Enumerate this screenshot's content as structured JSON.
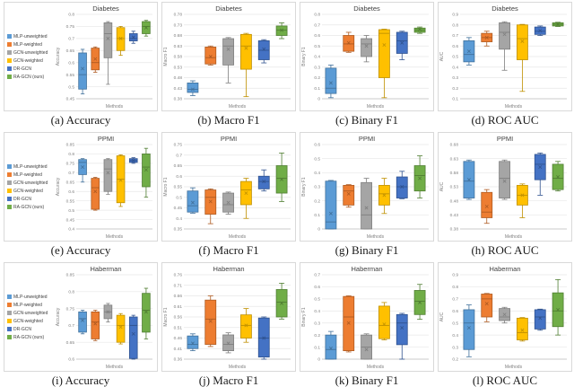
{
  "legend": {
    "items": [
      {
        "key": "mlp-unweighted",
        "label": "MLP-unweighted",
        "color": "#5B9BD5",
        "stroke": "#41719C"
      },
      {
        "key": "mlp-weighted",
        "label": "MLP-weighted",
        "color": "#ED7D31",
        "stroke": "#AE5A21"
      },
      {
        "key": "gcn-unweighted",
        "label": "GCN-unweighted",
        "color": "#A5A5A5",
        "stroke": "#7F7F7F"
      },
      {
        "key": "gcn-weighted",
        "label": "GCN-weighted",
        "color": "#FFC000",
        "stroke": "#BF9000"
      },
      {
        "key": "dr-gcn",
        "label": "DR-GCN",
        "color": "#4472C4",
        "stroke": "#2F528F"
      },
      {
        "key": "ra-gcn-ours",
        "label": "RA-GCN (ours)",
        "color": "#70AD47",
        "stroke": "#507E32"
      }
    ]
  },
  "captions": [
    "(a) Accuracy",
    "(b) Macro F1",
    "(c) Binary F1",
    "(d) ROC AUC",
    "(e) Accuracy",
    "(f) Macro F1",
    "(g) Binary F1",
    "(h) ROC AUC",
    "(i) Accuracy",
    "(j) Macro F1",
    "(k) Binary F1",
    "(l) ROC AUC"
  ],
  "chart_data": [
    {
      "type": "box",
      "title": "Diabetes",
      "ylabel": "Accuracy",
      "xlabel": "Methods",
      "ymin": 0.45,
      "ymax": 0.8,
      "ystep": 0.05,
      "series": [
        {
          "method": "MLP-unweighted",
          "low": 0.47,
          "q1": 0.49,
          "median": 0.55,
          "q3": 0.64,
          "high": 0.655,
          "mean": 0.575
        },
        {
          "method": "MLP-weighted",
          "low": 0.56,
          "q1": 0.57,
          "median": 0.6,
          "q3": 0.66,
          "high": 0.665,
          "mean": 0.615
        },
        {
          "method": "GCN-unweighted",
          "low": 0.51,
          "q1": 0.62,
          "median": 0.72,
          "q3": 0.765,
          "high": 0.77,
          "mean": 0.7
        },
        {
          "method": "GCN-weighted",
          "low": 0.63,
          "q1": 0.65,
          "median": 0.7,
          "q3": 0.745,
          "high": 0.75,
          "mean": 0.7
        },
        {
          "method": "DR-GCN",
          "low": 0.68,
          "q1": 0.69,
          "median": 0.7,
          "q3": 0.72,
          "high": 0.73,
          "mean": 0.705
        },
        {
          "method": "RA-GCN (ours)",
          "low": 0.71,
          "q1": 0.72,
          "median": 0.75,
          "q3": 0.77,
          "high": 0.775,
          "mean": 0.745
        }
      ]
    },
    {
      "type": "box",
      "title": "Diabetes",
      "ylabel": "Macro F1",
      "xlabel": "Methods",
      "ymin": 0.38,
      "ymax": 0.78,
      "ystep": 0.05,
      "series": [
        {
          "method": "MLP-unweighted",
          "low": 0.395,
          "q1": 0.41,
          "median": 0.425,
          "q3": 0.455,
          "high": 0.465,
          "mean": 0.425
        },
        {
          "method": "MLP-weighted",
          "low": 0.54,
          "q1": 0.545,
          "median": 0.575,
          "q3": 0.625,
          "high": 0.63,
          "mean": 0.58
        },
        {
          "method": "GCN-unweighted",
          "low": 0.455,
          "q1": 0.54,
          "median": 0.63,
          "q3": 0.665,
          "high": 0.67,
          "mean": 0.615
        },
        {
          "method": "GCN-weighted",
          "low": 0.39,
          "q1": 0.52,
          "median": 0.63,
          "q3": 0.685,
          "high": 0.69,
          "mean": 0.62
        },
        {
          "method": "DR-GCN",
          "low": 0.55,
          "q1": 0.565,
          "median": 0.61,
          "q3": 0.655,
          "high": 0.66,
          "mean": 0.615
        },
        {
          "method": "RA-GCN (ours)",
          "low": 0.665,
          "q1": 0.68,
          "median": 0.705,
          "q3": 0.725,
          "high": 0.74,
          "mean": 0.705
        }
      ]
    },
    {
      "type": "box",
      "title": "Diabetes",
      "ylabel": "Binary F1",
      "xlabel": "Methods",
      "ymin": 0,
      "ymax": 0.8,
      "ystep": 0.1,
      "series": [
        {
          "method": "MLP-unweighted",
          "low": 0.01,
          "q1": 0.05,
          "median": 0.1,
          "q3": 0.29,
          "high": 0.32,
          "mean": 0.15
        },
        {
          "method": "MLP-weighted",
          "low": 0.44,
          "q1": 0.45,
          "median": 0.52,
          "q3": 0.6,
          "high": 0.63,
          "mean": 0.53
        },
        {
          "method": "GCN-unweighted",
          "low": 0.35,
          "q1": 0.4,
          "median": 0.52,
          "q3": 0.57,
          "high": 0.6,
          "mean": 0.5
        },
        {
          "method": "GCN-weighted",
          "low": 0.01,
          "q1": 0.2,
          "median": 0.62,
          "q3": 0.655,
          "high": 0.66,
          "mean": 0.51
        },
        {
          "method": "DR-GCN",
          "low": 0.37,
          "q1": 0.43,
          "median": 0.55,
          "q3": 0.63,
          "high": 0.64,
          "mean": 0.53
        },
        {
          "method": "RA-GCN (ours)",
          "low": 0.62,
          "q1": 0.63,
          "median": 0.65,
          "q3": 0.67,
          "high": 0.68,
          "mean": 0.655
        }
      ]
    },
    {
      "type": "box",
      "title": "Diabetes",
      "ylabel": "AUC",
      "xlabel": "Methods",
      "ymin": 0.1,
      "ymax": 0.9,
      "ystep": 0.1,
      "series": [
        {
          "method": "MLP-unweighted",
          "low": 0.42,
          "q1": 0.45,
          "median": 0.52,
          "q3": 0.65,
          "high": 0.68,
          "mean": 0.55
        },
        {
          "method": "MLP-weighted",
          "low": 0.6,
          "q1": 0.64,
          "median": 0.68,
          "q3": 0.72,
          "high": 0.74,
          "mean": 0.68
        },
        {
          "method": "GCN-unweighted",
          "low": 0.37,
          "q1": 0.57,
          "median": 0.73,
          "q3": 0.82,
          "high": 0.83,
          "mean": 0.71
        },
        {
          "method": "GCN-weighted",
          "low": 0.17,
          "q1": 0.47,
          "median": 0.67,
          "q3": 0.8,
          "high": 0.805,
          "mean": 0.645
        },
        {
          "method": "DR-GCN",
          "low": 0.7,
          "q1": 0.71,
          "median": 0.74,
          "q3": 0.78,
          "high": 0.79,
          "mean": 0.745
        },
        {
          "method": "RA-GCN (ours)",
          "low": 0.785,
          "q1": 0.79,
          "median": 0.805,
          "q3": 0.82,
          "high": 0.825,
          "mean": 0.805
        }
      ]
    },
    {
      "type": "box",
      "title": "PPMI",
      "ylabel": "Accuracy",
      "xlabel": "Methods",
      "ymin": 0.4,
      "ymax": 0.85,
      "ystep": 0.05,
      "series": [
        {
          "method": "MLP-unweighted",
          "low": 0.65,
          "q1": 0.69,
          "median": 0.755,
          "q3": 0.77,
          "high": 0.775,
          "mean": 0.73
        },
        {
          "method": "MLP-weighted",
          "low": 0.5,
          "q1": 0.505,
          "median": 0.62,
          "q3": 0.67,
          "high": 0.675,
          "mean": 0.6
        },
        {
          "method": "GCN-unweighted",
          "low": 0.585,
          "q1": 0.6,
          "median": 0.72,
          "q3": 0.77,
          "high": 0.775,
          "mean": 0.7
        },
        {
          "method": "GCN-weighted",
          "low": 0.52,
          "q1": 0.54,
          "median": 0.665,
          "q3": 0.79,
          "high": 0.795,
          "mean": 0.66
        },
        {
          "method": "DR-GCN",
          "low": 0.75,
          "q1": 0.755,
          "median": 0.765,
          "q3": 0.775,
          "high": 0.78,
          "mean": 0.765
        },
        {
          "method": "RA-GCN (ours)",
          "low": 0.57,
          "q1": 0.625,
          "median": 0.73,
          "q3": 0.8,
          "high": 0.83,
          "mean": 0.715
        }
      ]
    },
    {
      "type": "box",
      "title": "PPMI",
      "ylabel": "Macro F1",
      "xlabel": "Methods",
      "ymin": 0.35,
      "ymax": 0.75,
      "ystep": 0.05,
      "series": [
        {
          "method": "MLP-unweighted",
          "low": 0.425,
          "q1": 0.43,
          "median": 0.46,
          "q3": 0.53,
          "high": 0.545,
          "mean": 0.475
        },
        {
          "method": "MLP-weighted",
          "low": 0.375,
          "q1": 0.42,
          "median": 0.5,
          "q3": 0.535,
          "high": 0.54,
          "mean": 0.48
        },
        {
          "method": "GCN-unweighted",
          "low": 0.42,
          "q1": 0.43,
          "median": 0.465,
          "q3": 0.52,
          "high": 0.525,
          "mean": 0.475
        },
        {
          "method": "GCN-weighted",
          "low": 0.4,
          "q1": 0.465,
          "median": 0.535,
          "q3": 0.575,
          "high": 0.59,
          "mean": 0.52
        },
        {
          "method": "DR-GCN",
          "low": 0.53,
          "q1": 0.54,
          "median": 0.575,
          "q3": 0.6,
          "high": 0.63,
          "mean": 0.575
        },
        {
          "method": "RA-GCN (ours)",
          "low": 0.48,
          "q1": 0.52,
          "median": 0.59,
          "q3": 0.65,
          "high": 0.71,
          "mean": 0.585
        }
      ]
    },
    {
      "type": "box",
      "title": "PPMI",
      "ylabel": "Binary F1",
      "xlabel": "Methods",
      "ymin": 0,
      "ymax": 0.6,
      "ystep": 0.1,
      "series": [
        {
          "method": "MLP-unweighted",
          "low": 0.0,
          "q1": 0.0,
          "median": 0.05,
          "q3": 0.34,
          "high": 0.345,
          "mean": 0.11
        },
        {
          "method": "MLP-weighted",
          "low": 0.155,
          "q1": 0.17,
          "median": 0.27,
          "q3": 0.31,
          "high": 0.315,
          "mean": 0.25
        },
        {
          "method": "GCN-unweighted",
          "low": 0.0,
          "q1": 0.0,
          "median": 0.1,
          "q3": 0.33,
          "high": 0.36,
          "mean": 0.15
        },
        {
          "method": "GCN-weighted",
          "low": 0.11,
          "q1": 0.17,
          "median": 0.25,
          "q3": 0.31,
          "high": 0.36,
          "mean": 0.24
        },
        {
          "method": "DR-GCN",
          "low": 0.215,
          "q1": 0.22,
          "median": 0.3,
          "q3": 0.37,
          "high": 0.41,
          "mean": 0.3
        },
        {
          "method": "RA-GCN (ours)",
          "low": 0.22,
          "q1": 0.27,
          "median": 0.38,
          "q3": 0.45,
          "high": 0.52,
          "mean": 0.36
        }
      ]
    },
    {
      "type": "box",
      "title": "PPMI",
      "ylabel": "AUC",
      "xlabel": "Methods",
      "ymin": 0.38,
      "ymax": 0.68,
      "ystep": 0.05,
      "series": [
        {
          "method": "MLP-unweighted",
          "low": 0.485,
          "q1": 0.49,
          "median": 0.55,
          "q3": 0.62,
          "high": 0.625,
          "mean": 0.555
        },
        {
          "method": "MLP-weighted",
          "low": 0.4,
          "q1": 0.42,
          "median": 0.44,
          "q3": 0.51,
          "high": 0.52,
          "mean": 0.46
        },
        {
          "method": "GCN-unweighted",
          "low": 0.485,
          "q1": 0.49,
          "median": 0.56,
          "q3": 0.62,
          "high": 0.625,
          "mean": 0.55
        },
        {
          "method": "GCN-weighted",
          "low": 0.42,
          "q1": 0.465,
          "median": 0.5,
          "q3": 0.535,
          "high": 0.54,
          "mean": 0.5
        },
        {
          "method": "DR-GCN",
          "low": 0.5,
          "q1": 0.555,
          "median": 0.61,
          "q3": 0.645,
          "high": 0.65,
          "mean": 0.6
        },
        {
          "method": "RA-GCN (ours)",
          "low": 0.515,
          "q1": 0.52,
          "median": 0.56,
          "q3": 0.61,
          "high": 0.62,
          "mean": 0.565
        }
      ]
    },
    {
      "type": "box",
      "title": "Haberman",
      "ylabel": "Accuracy",
      "xlabel": "Methods",
      "ymin": 0.6,
      "ymax": 0.85,
      "ystep": 0.05,
      "series": [
        {
          "method": "MLP-unweighted",
          "low": 0.675,
          "q1": 0.68,
          "median": 0.72,
          "q3": 0.74,
          "high": 0.745,
          "mean": 0.715
        },
        {
          "method": "MLP-weighted",
          "low": 0.655,
          "q1": 0.66,
          "median": 0.71,
          "q3": 0.74,
          "high": 0.745,
          "mean": 0.705
        },
        {
          "method": "GCN-unweighted",
          "low": 0.71,
          "q1": 0.72,
          "median": 0.74,
          "q3": 0.76,
          "high": 0.765,
          "mean": 0.74
        },
        {
          "method": "GCN-weighted",
          "low": 0.645,
          "q1": 0.65,
          "median": 0.7,
          "q3": 0.73,
          "high": 0.735,
          "mean": 0.695
        },
        {
          "method": "DR-GCN",
          "low": 0.6,
          "q1": 0.602,
          "median": 0.7,
          "q3": 0.725,
          "high": 0.73,
          "mean": 0.675
        },
        {
          "method": "RA-GCN (ours)",
          "low": 0.66,
          "q1": 0.68,
          "median": 0.745,
          "q3": 0.795,
          "high": 0.81,
          "mean": 0.74
        }
      ]
    },
    {
      "type": "box",
      "title": "Haberman",
      "ylabel": "Macro F1",
      "xlabel": "Methods",
      "ymin": 0.36,
      "ymax": 0.76,
      "ystep": 0.05,
      "series": [
        {
          "method": "MLP-unweighted",
          "low": 0.4,
          "q1": 0.41,
          "median": 0.43,
          "q3": 0.47,
          "high": 0.48,
          "mean": 0.435
        },
        {
          "method": "MLP-weighted",
          "low": 0.42,
          "q1": 0.43,
          "median": 0.55,
          "q3": 0.64,
          "high": 0.66,
          "mean": 0.54
        },
        {
          "method": "GCN-unweighted",
          "low": 0.39,
          "q1": 0.4,
          "median": 0.43,
          "q3": 0.475,
          "high": 0.485,
          "mean": 0.435
        },
        {
          "method": "GCN-weighted",
          "low": 0.44,
          "q1": 0.46,
          "median": 0.52,
          "q3": 0.57,
          "high": 0.6,
          "mean": 0.52
        },
        {
          "method": "DR-GCN",
          "low": 0.36,
          "q1": 0.37,
          "median": 0.46,
          "q3": 0.555,
          "high": 0.56,
          "mean": 0.46
        },
        {
          "method": "RA-GCN (ours)",
          "low": 0.55,
          "q1": 0.56,
          "median": 0.63,
          "q3": 0.69,
          "high": 0.72,
          "mean": 0.625
        }
      ]
    },
    {
      "type": "box",
      "title": "Haberman",
      "ylabel": "Binary F1",
      "xlabel": "Methods",
      "ymin": 0,
      "ymax": 0.7,
      "ystep": 0.1,
      "series": [
        {
          "method": "MLP-unweighted",
          "low": 0.0,
          "q1": 0.0,
          "median": 0.08,
          "q3": 0.2,
          "high": 0.23,
          "mean": 0.09
        },
        {
          "method": "MLP-weighted",
          "low": 0.06,
          "q1": 0.07,
          "median": 0.35,
          "q3": 0.52,
          "high": 0.525,
          "mean": 0.3
        },
        {
          "method": "GCN-unweighted",
          "low": 0.0,
          "q1": 0.0,
          "median": 0.1,
          "q3": 0.2,
          "high": 0.21,
          "mean": 0.08
        },
        {
          "method": "GCN-weighted",
          "low": 0.16,
          "q1": 0.17,
          "median": 0.28,
          "q3": 0.44,
          "high": 0.47,
          "mean": 0.29
        },
        {
          "method": "DR-GCN",
          "low": 0.0,
          "q1": 0.12,
          "median": 0.3,
          "q3": 0.37,
          "high": 0.38,
          "mean": 0.26
        },
        {
          "method": "RA-GCN (ours)",
          "low": 0.33,
          "q1": 0.37,
          "median": 0.48,
          "q3": 0.57,
          "high": 0.62,
          "mean": 0.47
        }
      ]
    },
    {
      "type": "box",
      "title": "Haberman",
      "ylabel": "AUC",
      "xlabel": "Methods",
      "ymin": 0.2,
      "ymax": 0.9,
      "ystep": 0.1,
      "series": [
        {
          "method": "MLP-unweighted",
          "low": 0.22,
          "q1": 0.28,
          "median": 0.5,
          "q3": 0.61,
          "high": 0.65,
          "mean": 0.46
        },
        {
          "method": "MLP-weighted",
          "low": 0.51,
          "q1": 0.55,
          "median": 0.7,
          "q3": 0.74,
          "high": 0.745,
          "mean": 0.66
        },
        {
          "method": "GCN-unweighted",
          "low": 0.5,
          "q1": 0.52,
          "median": 0.55,
          "q3": 0.62,
          "high": 0.63,
          "mean": 0.57
        },
        {
          "method": "GCN-weighted",
          "low": 0.35,
          "q1": 0.36,
          "median": 0.42,
          "q3": 0.54,
          "high": 0.545,
          "mean": 0.44
        },
        {
          "method": "DR-GCN",
          "low": 0.44,
          "q1": 0.45,
          "median": 0.55,
          "q3": 0.61,
          "high": 0.615,
          "mean": 0.54
        },
        {
          "method": "RA-GCN (ours)",
          "low": 0.4,
          "q1": 0.47,
          "median": 0.6,
          "q3": 0.75,
          "high": 0.86,
          "mean": 0.61
        }
      ]
    }
  ]
}
